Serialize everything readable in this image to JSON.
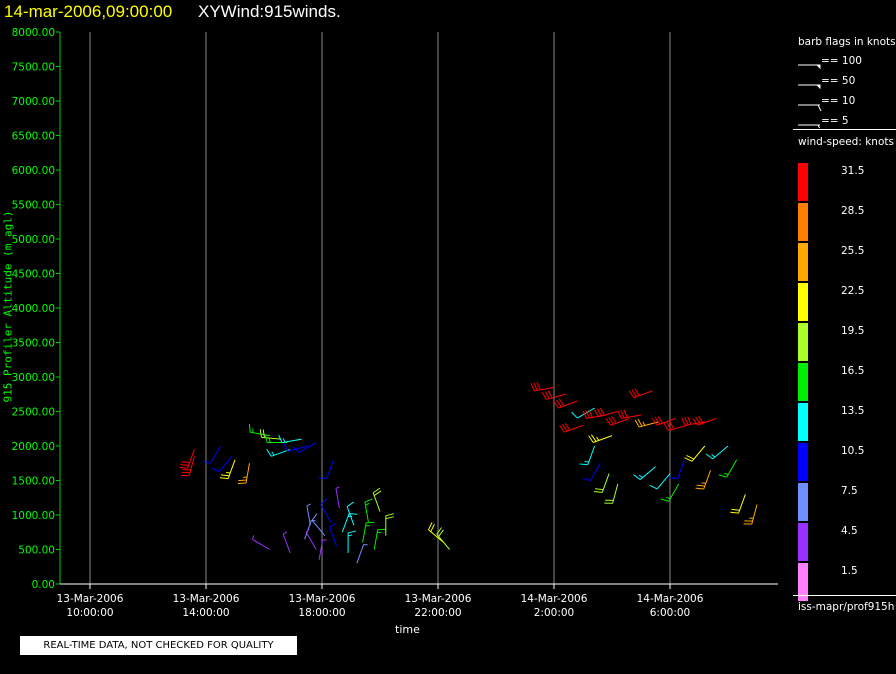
{
  "header": {
    "date": "14-mar-2006,09:00:00",
    "title": "XYWind:915winds."
  },
  "disclaimer": "REAL-TIME DATA, NOT CHECKED FOR QUALITY",
  "legend": {
    "barb_title": "barb flags in knots",
    "barbs": [
      {
        "label": "== 100",
        "kind": "pennant"
      },
      {
        "label": "== 50",
        "kind": "pennant"
      },
      {
        "label": "== 10",
        "kind": "full"
      },
      {
        "label": "== 5",
        "kind": "half"
      }
    ],
    "speed_title": "wind-speed: knots",
    "scale": [
      {
        "label": "31.5",
        "color": "#ff0000"
      },
      {
        "label": "28.5",
        "color": "#ff7f00"
      },
      {
        "label": "25.5",
        "color": "#ffaa00"
      },
      {
        "label": "22.5",
        "color": "#ffff00"
      },
      {
        "label": "19.5",
        "color": "#aaff2a"
      },
      {
        "label": "16.5",
        "color": "#00ee00"
      },
      {
        "label": "13.5",
        "color": "#00ffff"
      },
      {
        "label": "10.5",
        "color": "#0000ff"
      },
      {
        "label": "7.5",
        "color": "#6f8fff"
      },
      {
        "label": "4.5",
        "color": "#9a30ff"
      },
      {
        "label": "1.5",
        "color": "#ff80ff"
      }
    ],
    "source_id": "iss-mapr/prof915h"
  },
  "chart_data": {
    "type": "scatter",
    "title": "XYWind:915winds.",
    "xlabel": "time",
    "ylabel": "915 Profiler Altitude (m agl)",
    "ylim": [
      0,
      8000
    ],
    "yticks": [
      "0.00",
      "500.00",
      "1000.00",
      "1500.00",
      "2000.00",
      "2500.00",
      "3000.00",
      "3500.00",
      "4000.00",
      "4500.00",
      "5000.00",
      "5500.00",
      "6000.00",
      "6500.00",
      "7000.00",
      "7500.00",
      "8000.00"
    ],
    "xticks": [
      {
        "date": "13-Mar-2006",
        "time": "10:00:00"
      },
      {
        "date": "13-Mar-2006",
        "time": "14:00:00"
      },
      {
        "date": "13-Mar-2006",
        "time": "18:00:00"
      },
      {
        "date": "13-Mar-2006",
        "time": "22:00:00"
      },
      {
        "date": "14-Mar-2006",
        "time": "2:00:00"
      },
      {
        "date": "14-Mar-2006",
        "time": "6:00:00"
      }
    ],
    "xlim_hours": [
      9,
      33.8
    ],
    "grid": "vertical at ticks",
    "barbs": [
      {
        "t": 13.6,
        "alt": 1950,
        "speed": 31,
        "dir": 200
      },
      {
        "t": 13.6,
        "alt": 1850,
        "speed": 30,
        "dir": 195
      },
      {
        "t": 14.5,
        "alt": 2000,
        "speed": 11,
        "dir": 210
      },
      {
        "t": 14.9,
        "alt": 1850,
        "speed": 10,
        "dir": 220
      },
      {
        "t": 15.0,
        "alt": 1800,
        "speed": 23,
        "dir": 200
      },
      {
        "t": 15.5,
        "alt": 1750,
        "speed": 26,
        "dir": 190
      },
      {
        "t": 16.2,
        "alt": 2150,
        "speed": 17,
        "dir": 280
      },
      {
        "t": 16.6,
        "alt": 2100,
        "speed": 20,
        "dir": 275
      },
      {
        "t": 16.8,
        "alt": 2050,
        "speed": 16,
        "dir": 270
      },
      {
        "t": 16.9,
        "alt": 1950,
        "speed": 14,
        "dir": 250
      },
      {
        "t": 17.3,
        "alt": 2100,
        "speed": 13,
        "dir": 260
      },
      {
        "t": 17.5,
        "alt": 2000,
        "speed": 11,
        "dir": 255
      },
      {
        "t": 17.8,
        "alt": 2050,
        "speed": 10,
        "dir": 240
      },
      {
        "t": 18.4,
        "alt": 1800,
        "speed": 10,
        "dir": 200
      },
      {
        "t": 16.2,
        "alt": 500,
        "speed": 5,
        "dir": 300
      },
      {
        "t": 16.9,
        "alt": 450,
        "speed": 4,
        "dir": 340
      },
      {
        "t": 17.4,
        "alt": 650,
        "speed": 6,
        "dir": 20
      },
      {
        "t": 17.6,
        "alt": 850,
        "speed": 7,
        "dir": 350
      },
      {
        "t": 17.8,
        "alt": 500,
        "speed": 3,
        "dir": 330
      },
      {
        "t": 17.9,
        "alt": 350,
        "speed": 5,
        "dir": 10
      },
      {
        "t": 18.1,
        "alt": 700,
        "speed": 8,
        "dir": 320
      },
      {
        "t": 18.3,
        "alt": 900,
        "speed": 9,
        "dir": 330
      },
      {
        "t": 18.5,
        "alt": 550,
        "speed": 11,
        "dir": 340
      },
      {
        "t": 18.6,
        "alt": 1100,
        "speed": 4,
        "dir": 350
      },
      {
        "t": 18.7,
        "alt": 750,
        "speed": 13,
        "dir": 20
      },
      {
        "t": 18.9,
        "alt": 450,
        "speed": 14,
        "dir": 0
      },
      {
        "t": 19.1,
        "alt": 850,
        "speed": 12,
        "dir": 340
      },
      {
        "t": 19.2,
        "alt": 300,
        "speed": 6,
        "dir": 20
      },
      {
        "t": 19.4,
        "alt": 600,
        "speed": 15,
        "dir": 10
      },
      {
        "t": 19.6,
        "alt": 900,
        "speed": 17,
        "dir": 350
      },
      {
        "t": 19.8,
        "alt": 500,
        "speed": 16,
        "dir": 10
      },
      {
        "t": 20.0,
        "alt": 1050,
        "speed": 18,
        "dir": 340
      },
      {
        "t": 20.2,
        "alt": 700,
        "speed": 18,
        "dir": 0
      },
      {
        "t": 22.2,
        "alt": 600,
        "speed": 22,
        "dir": 310
      },
      {
        "t": 22.4,
        "alt": 500,
        "speed": 20,
        "dir": 320
      },
      {
        "t": 26.0,
        "alt": 2850,
        "speed": 31,
        "dir": 260
      },
      {
        "t": 26.4,
        "alt": 2750,
        "speed": 31,
        "dir": 255
      },
      {
        "t": 26.8,
        "alt": 2650,
        "speed": 30,
        "dir": 250
      },
      {
        "t": 27.4,
        "alt": 2550,
        "speed": 12,
        "dir": 240
      },
      {
        "t": 27.0,
        "alt": 2300,
        "speed": 31,
        "dir": 250
      },
      {
        "t": 27.8,
        "alt": 2450,
        "speed": 31,
        "dir": 260
      },
      {
        "t": 28.2,
        "alt": 2500,
        "speed": 31,
        "dir": 255
      },
      {
        "t": 28.6,
        "alt": 2400,
        "speed": 30,
        "dir": 250
      },
      {
        "t": 29.0,
        "alt": 2450,
        "speed": 31,
        "dir": 260
      },
      {
        "t": 29.4,
        "alt": 2800,
        "speed": 31,
        "dir": 250
      },
      {
        "t": 29.6,
        "alt": 2350,
        "speed": 24,
        "dir": 255
      },
      {
        "t": 30.2,
        "alt": 2400,
        "speed": 31,
        "dir": 250
      },
      {
        "t": 30.6,
        "alt": 2300,
        "speed": 31,
        "dir": 255
      },
      {
        "t": 31.2,
        "alt": 2350,
        "speed": 31,
        "dir": 260
      },
      {
        "t": 31.6,
        "alt": 2400,
        "speed": 30,
        "dir": 250
      },
      {
        "t": 28.0,
        "alt": 2150,
        "speed": 23,
        "dir": 250
      },
      {
        "t": 27.4,
        "alt": 2000,
        "speed": 14,
        "dir": 200
      },
      {
        "t": 27.6,
        "alt": 1750,
        "speed": 11,
        "dir": 210
      },
      {
        "t": 27.9,
        "alt": 1600,
        "speed": 20,
        "dir": 200
      },
      {
        "t": 28.2,
        "alt": 1450,
        "speed": 18,
        "dir": 195
      },
      {
        "t": 29.5,
        "alt": 1700,
        "speed": 13,
        "dir": 230
      },
      {
        "t": 30.0,
        "alt": 1600,
        "speed": 12,
        "dir": 220
      },
      {
        "t": 30.3,
        "alt": 1450,
        "speed": 15,
        "dir": 210
      },
      {
        "t": 30.5,
        "alt": 1800,
        "speed": 10,
        "dir": 200
      },
      {
        "t": 31.2,
        "alt": 2000,
        "speed": 22,
        "dir": 220
      },
      {
        "t": 31.4,
        "alt": 1650,
        "speed": 26,
        "dir": 200
      },
      {
        "t": 32.0,
        "alt": 2000,
        "speed": 14,
        "dir": 230
      },
      {
        "t": 32.3,
        "alt": 1800,
        "speed": 16,
        "dir": 210
      },
      {
        "t": 32.6,
        "alt": 1300,
        "speed": 22,
        "dir": 200
      },
      {
        "t": 33.0,
        "alt": 1150,
        "speed": 24,
        "dir": 195
      }
    ]
  }
}
